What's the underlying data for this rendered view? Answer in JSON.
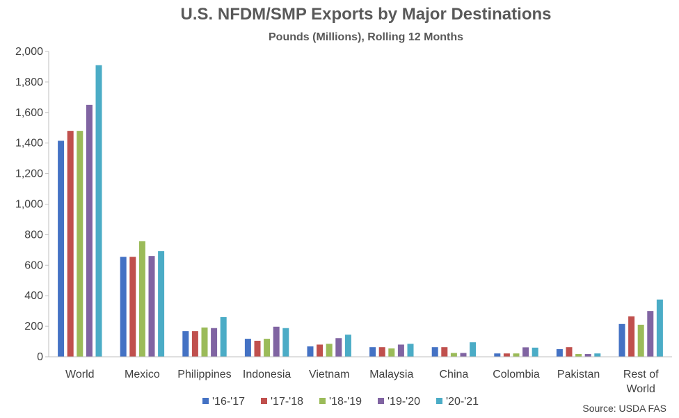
{
  "chart_data": {
    "type": "bar",
    "title": "U.S. NFDM/SMP Exports by Major Destinations",
    "subtitle": "Pounds (Millions), Rolling 12 Months",
    "categories": [
      "World",
      "Mexico",
      "Philippines",
      "Indonesia",
      "Vietnam",
      "Malaysia",
      "China",
      "Colombia",
      "Pakistan",
      "Rest of World"
    ],
    "series": [
      {
        "name": "'16-'17",
        "color": "#4472C4",
        "values": [
          1415,
          655,
          168,
          118,
          68,
          63,
          63,
          22,
          50,
          215
        ]
      },
      {
        "name": "'17-'18",
        "color": "#C0504D",
        "values": [
          1480,
          655,
          168,
          105,
          80,
          63,
          63,
          22,
          63,
          265
        ]
      },
      {
        "name": "'18-'19",
        "color": "#9BBB59",
        "values": [
          1480,
          757,
          192,
          118,
          85,
          55,
          25,
          22,
          18,
          210
        ]
      },
      {
        "name": "'19-'20",
        "color": "#8064A2",
        "values": [
          1650,
          660,
          188,
          197,
          122,
          80,
          25,
          62,
          18,
          300
        ]
      },
      {
        "name": "'20-'21",
        "color": "#4BACC6",
        "values": [
          1910,
          692,
          260,
          188,
          145,
          85,
          95,
          60,
          22,
          375
        ]
      }
    ],
    "ylim": [
      0,
      2000
    ],
    "yticks": [
      "0",
      "200",
      "400",
      "600",
      "800",
      "1,000",
      "1,200",
      "1,400",
      "1,600",
      "1,800",
      "2,000"
    ],
    "grid": false,
    "legend_position": "bottom",
    "source": "Source: USDA FAS"
  }
}
